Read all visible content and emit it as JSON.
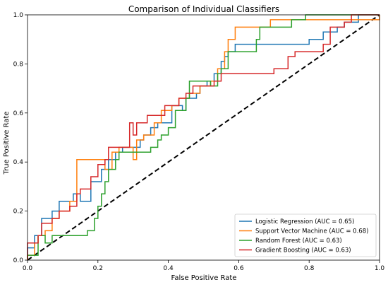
{
  "chart_data": {
    "type": "line",
    "title": "Comparison of Individual Classifiers",
    "xlabel": "False Positive Rate",
    "ylabel": "True Positive Rate",
    "xlim": [
      0.0,
      1.0
    ],
    "ylim": [
      0.0,
      1.0
    ],
    "x_ticks": [
      "0.0",
      "0.2",
      "0.4",
      "0.6",
      "0.8",
      "1.0"
    ],
    "y_ticks": [
      "0.0",
      "0.2",
      "0.4",
      "0.6",
      "0.8",
      "1.0"
    ],
    "grid": false,
    "legend_position": "lower-right",
    "diagonal_reference": {
      "x": [
        0,
        1
      ],
      "y": [
        0,
        1
      ],
      "style": "dashed",
      "color": "#000000"
    },
    "series": [
      {
        "name": "Logistic Regression (AUC = 0.65)",
        "color": "#1f77b4",
        "points": [
          [
            0,
            0
          ],
          [
            0,
            0.05
          ],
          [
            0.02,
            0.05
          ],
          [
            0.02,
            0.1
          ],
          [
            0.04,
            0.1
          ],
          [
            0.04,
            0.17
          ],
          [
            0.07,
            0.17
          ],
          [
            0.07,
            0.2
          ],
          [
            0.09,
            0.2
          ],
          [
            0.09,
            0.24
          ],
          [
            0.13,
            0.24
          ],
          [
            0.13,
            0.27
          ],
          [
            0.15,
            0.27
          ],
          [
            0.15,
            0.24
          ],
          [
            0.18,
            0.24
          ],
          [
            0.18,
            0.32
          ],
          [
            0.21,
            0.32
          ],
          [
            0.21,
            0.37
          ],
          [
            0.23,
            0.37
          ],
          [
            0.23,
            0.41
          ],
          [
            0.25,
            0.41
          ],
          [
            0.25,
            0.44
          ],
          [
            0.27,
            0.44
          ],
          [
            0.27,
            0.46
          ],
          [
            0.32,
            0.46
          ],
          [
            0.32,
            0.49
          ],
          [
            0.33,
            0.49
          ],
          [
            0.33,
            0.51
          ],
          [
            0.35,
            0.51
          ],
          [
            0.35,
            0.54
          ],
          [
            0.37,
            0.54
          ],
          [
            0.37,
            0.56
          ],
          [
            0.41,
            0.56
          ],
          [
            0.41,
            0.63
          ],
          [
            0.44,
            0.63
          ],
          [
            0.44,
            0.61
          ],
          [
            0.45,
            0.61
          ],
          [
            0.45,
            0.66
          ],
          [
            0.48,
            0.66
          ],
          [
            0.48,
            0.68
          ],
          [
            0.49,
            0.68
          ],
          [
            0.49,
            0.71
          ],
          [
            0.51,
            0.71
          ],
          [
            0.51,
            0.73
          ],
          [
            0.53,
            0.73
          ],
          [
            0.53,
            0.76
          ],
          [
            0.55,
            0.76
          ],
          [
            0.55,
            0.81
          ],
          [
            0.56,
            0.81
          ],
          [
            0.56,
            0.83
          ],
          [
            0.57,
            0.83
          ],
          [
            0.57,
            0.85
          ],
          [
            0.59,
            0.85
          ],
          [
            0.59,
            0.88
          ],
          [
            0.8,
            0.88
          ],
          [
            0.8,
            0.9
          ],
          [
            0.84,
            0.9
          ],
          [
            0.84,
            0.93
          ],
          [
            0.88,
            0.93
          ],
          [
            0.88,
            0.95
          ],
          [
            0.9,
            0.95
          ],
          [
            0.9,
            0.97
          ],
          [
            0.94,
            0.97
          ],
          [
            0.94,
            1.0
          ],
          [
            1.0,
            1.0
          ]
        ]
      },
      {
        "name": "Support Vector Machine (AUC = 0.68)",
        "color": "#ff7f0e",
        "points": [
          [
            0,
            0
          ],
          [
            0,
            0.02
          ],
          [
            0.02,
            0.02
          ],
          [
            0.02,
            0.07
          ],
          [
            0.03,
            0.07
          ],
          [
            0.03,
            0.1
          ],
          [
            0.05,
            0.1
          ],
          [
            0.05,
            0.12
          ],
          [
            0.07,
            0.12
          ],
          [
            0.07,
            0.17
          ],
          [
            0.09,
            0.17
          ],
          [
            0.09,
            0.2
          ],
          [
            0.12,
            0.2
          ],
          [
            0.12,
            0.24
          ],
          [
            0.14,
            0.24
          ],
          [
            0.14,
            0.41
          ],
          [
            0.22,
            0.41
          ],
          [
            0.22,
            0.37
          ],
          [
            0.24,
            0.37
          ],
          [
            0.24,
            0.44
          ],
          [
            0.26,
            0.44
          ],
          [
            0.26,
            0.46
          ],
          [
            0.3,
            0.46
          ],
          [
            0.3,
            0.41
          ],
          [
            0.31,
            0.41
          ],
          [
            0.31,
            0.49
          ],
          [
            0.33,
            0.49
          ],
          [
            0.33,
            0.51
          ],
          [
            0.36,
            0.51
          ],
          [
            0.36,
            0.56
          ],
          [
            0.38,
            0.56
          ],
          [
            0.38,
            0.61
          ],
          [
            0.41,
            0.61
          ],
          [
            0.41,
            0.63
          ],
          [
            0.43,
            0.63
          ],
          [
            0.43,
            0.66
          ],
          [
            0.46,
            0.66
          ],
          [
            0.46,
            0.68
          ],
          [
            0.49,
            0.68
          ],
          [
            0.49,
            0.71
          ],
          [
            0.52,
            0.71
          ],
          [
            0.52,
            0.73
          ],
          [
            0.54,
            0.73
          ],
          [
            0.54,
            0.78
          ],
          [
            0.56,
            0.78
          ],
          [
            0.56,
            0.85
          ],
          [
            0.57,
            0.85
          ],
          [
            0.57,
            0.9
          ],
          [
            0.59,
            0.9
          ],
          [
            0.59,
            0.95
          ],
          [
            0.69,
            0.95
          ],
          [
            0.69,
            0.98
          ],
          [
            1.0,
            0.98
          ],
          [
            1.0,
            1.0
          ]
        ]
      },
      {
        "name": "Random Forest (AUC = 0.63)",
        "color": "#2ca02c",
        "points": [
          [
            0,
            0
          ],
          [
            0,
            0.02
          ],
          [
            0.03,
            0.02
          ],
          [
            0.03,
            0.1
          ],
          [
            0.05,
            0.1
          ],
          [
            0.05,
            0.07
          ],
          [
            0.07,
            0.07
          ],
          [
            0.07,
            0.1
          ],
          [
            0.17,
            0.1
          ],
          [
            0.17,
            0.12
          ],
          [
            0.19,
            0.12
          ],
          [
            0.19,
            0.17
          ],
          [
            0.2,
            0.17
          ],
          [
            0.2,
            0.22
          ],
          [
            0.21,
            0.22
          ],
          [
            0.21,
            0.27
          ],
          [
            0.22,
            0.27
          ],
          [
            0.22,
            0.32
          ],
          [
            0.23,
            0.32
          ],
          [
            0.23,
            0.37
          ],
          [
            0.25,
            0.37
          ],
          [
            0.25,
            0.41
          ],
          [
            0.26,
            0.41
          ],
          [
            0.26,
            0.44
          ],
          [
            0.35,
            0.44
          ],
          [
            0.35,
            0.46
          ],
          [
            0.37,
            0.46
          ],
          [
            0.37,
            0.49
          ],
          [
            0.38,
            0.49
          ],
          [
            0.38,
            0.51
          ],
          [
            0.4,
            0.51
          ],
          [
            0.4,
            0.54
          ],
          [
            0.42,
            0.54
          ],
          [
            0.42,
            0.61
          ],
          [
            0.45,
            0.61
          ],
          [
            0.45,
            0.66
          ],
          [
            0.46,
            0.66
          ],
          [
            0.46,
            0.73
          ],
          [
            0.52,
            0.73
          ],
          [
            0.52,
            0.71
          ],
          [
            0.54,
            0.71
          ],
          [
            0.54,
            0.76
          ],
          [
            0.55,
            0.76
          ],
          [
            0.55,
            0.78
          ],
          [
            0.57,
            0.78
          ],
          [
            0.57,
            0.85
          ],
          [
            0.65,
            0.85
          ],
          [
            0.65,
            0.9
          ],
          [
            0.66,
            0.9
          ],
          [
            0.66,
            0.95
          ],
          [
            0.75,
            0.95
          ],
          [
            0.75,
            0.98
          ],
          [
            0.79,
            0.98
          ],
          [
            0.79,
            1.0
          ],
          [
            1.0,
            1.0
          ]
        ]
      },
      {
        "name": "Gradient Boosting (AUC = 0.63)",
        "color": "#d62728",
        "points": [
          [
            0,
            0
          ],
          [
            0,
            0.07
          ],
          [
            0.03,
            0.07
          ],
          [
            0.03,
            0.1
          ],
          [
            0.04,
            0.1
          ],
          [
            0.04,
            0.15
          ],
          [
            0.07,
            0.15
          ],
          [
            0.07,
            0.17
          ],
          [
            0.09,
            0.17
          ],
          [
            0.09,
            0.2
          ],
          [
            0.12,
            0.2
          ],
          [
            0.12,
            0.22
          ],
          [
            0.14,
            0.22
          ],
          [
            0.14,
            0.27
          ],
          [
            0.15,
            0.27
          ],
          [
            0.15,
            0.29
          ],
          [
            0.18,
            0.29
          ],
          [
            0.18,
            0.34
          ],
          [
            0.2,
            0.34
          ],
          [
            0.2,
            0.39
          ],
          [
            0.22,
            0.39
          ],
          [
            0.22,
            0.41
          ],
          [
            0.23,
            0.41
          ],
          [
            0.23,
            0.46
          ],
          [
            0.29,
            0.46
          ],
          [
            0.29,
            0.56
          ],
          [
            0.3,
            0.56
          ],
          [
            0.3,
            0.51
          ],
          [
            0.31,
            0.51
          ],
          [
            0.31,
            0.56
          ],
          [
            0.34,
            0.56
          ],
          [
            0.34,
            0.59
          ],
          [
            0.39,
            0.59
          ],
          [
            0.39,
            0.63
          ],
          [
            0.43,
            0.63
          ],
          [
            0.43,
            0.66
          ],
          [
            0.45,
            0.66
          ],
          [
            0.45,
            0.68
          ],
          [
            0.47,
            0.68
          ],
          [
            0.47,
            0.71
          ],
          [
            0.53,
            0.71
          ],
          [
            0.53,
            0.73
          ],
          [
            0.55,
            0.73
          ],
          [
            0.55,
            0.76
          ],
          [
            0.7,
            0.76
          ],
          [
            0.7,
            0.78
          ],
          [
            0.74,
            0.78
          ],
          [
            0.74,
            0.83
          ],
          [
            0.76,
            0.83
          ],
          [
            0.76,
            0.85
          ],
          [
            0.84,
            0.85
          ],
          [
            0.84,
            0.88
          ],
          [
            0.86,
            0.88
          ],
          [
            0.86,
            0.95
          ],
          [
            0.9,
            0.95
          ],
          [
            0.9,
            0.97
          ],
          [
            0.92,
            0.97
          ],
          [
            0.92,
            1.0
          ],
          [
            1.0,
            1.0
          ]
        ]
      }
    ]
  }
}
